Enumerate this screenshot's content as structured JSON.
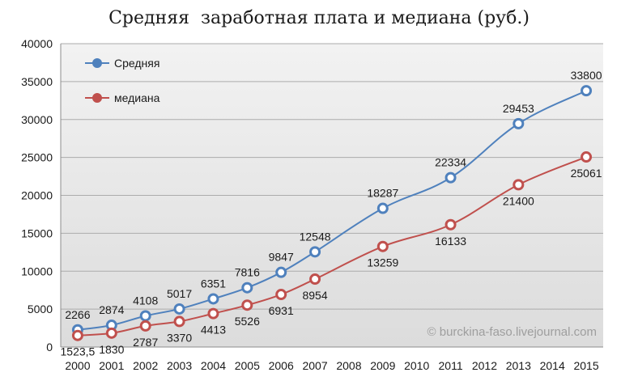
{
  "chart_data": {
    "type": "line",
    "title": "Средняя  заработная плата и медиана (руб.)",
    "watermark": "© burckina-faso.livejournal.com",
    "xlabel": "",
    "ylabel": "",
    "ylim": [
      0,
      40000
    ],
    "yticks": [
      "0",
      "5000",
      "10000",
      "15000",
      "20000",
      "25000",
      "30000",
      "35000",
      "40000"
    ],
    "xticks": [
      "2000",
      "2001",
      "2002",
      "2003",
      "2004",
      "2005",
      "2006",
      "2007",
      "2008",
      "2009",
      "2010",
      "2011",
      "2012",
      "2013",
      "2014",
      "2015"
    ],
    "grid": true,
    "legend_position": "top-left",
    "series": [
      {
        "name": "Средняя",
        "color": "#4f81bd",
        "label_side": "above",
        "points": [
          {
            "x": "2000",
            "y": 2266,
            "label": "2266"
          },
          {
            "x": "2001",
            "y": 2874,
            "label": "2874"
          },
          {
            "x": "2002",
            "y": 4108,
            "label": "4108"
          },
          {
            "x": "2003",
            "y": 5017,
            "label": "5017"
          },
          {
            "x": "2004",
            "y": 6351,
            "label": "6351"
          },
          {
            "x": "2005",
            "y": 7816,
            "label": "7816"
          },
          {
            "x": "2006",
            "y": 9847,
            "label": "9847"
          },
          {
            "x": "2007",
            "y": 12548,
            "label": "12548"
          },
          {
            "x": "2009",
            "y": 18287,
            "label": "18287"
          },
          {
            "x": "2011",
            "y": 22334,
            "label": "22334"
          },
          {
            "x": "2013",
            "y": 29453,
            "label": "29453"
          },
          {
            "x": "2015",
            "y": 33800,
            "label": "33800"
          }
        ]
      },
      {
        "name": "медиана",
        "color": "#c0504d",
        "label_side": "below",
        "points": [
          {
            "x": "2000",
            "y": 1523.5,
            "label": "1523,5"
          },
          {
            "x": "2001",
            "y": 1830,
            "label": "1830"
          },
          {
            "x": "2002",
            "y": 2787,
            "label": "2787"
          },
          {
            "x": "2003",
            "y": 3370,
            "label": "3370"
          },
          {
            "x": "2004",
            "y": 4413,
            "label": "4413"
          },
          {
            "x": "2005",
            "y": 5526,
            "label": "5526"
          },
          {
            "x": "2006",
            "y": 6931,
            "label": "6931"
          },
          {
            "x": "2007",
            "y": 8954,
            "label": "8954"
          },
          {
            "x": "2009",
            "y": 13259,
            "label": "13259"
          },
          {
            "x": "2011",
            "y": 16133,
            "label": "16133"
          },
          {
            "x": "2013",
            "y": 21400,
            "label": "21400"
          },
          {
            "x": "2015",
            "y": 25061,
            "label": "25061"
          }
        ]
      }
    ]
  }
}
